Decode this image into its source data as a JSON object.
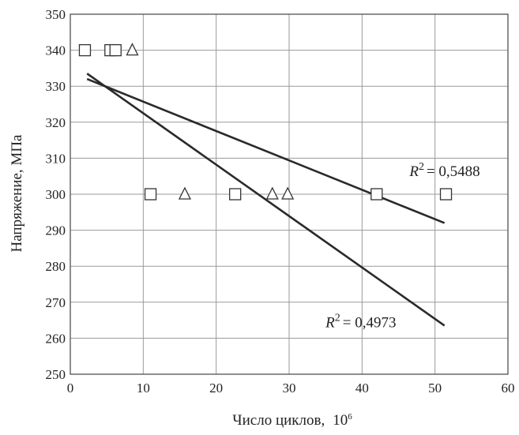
{
  "chart_data": {
    "type": "scatter",
    "title": "",
    "xlabel": "Число циклов,",
    "xlabel_unit": "10",
    "xlabel_unit_sup": "6",
    "ylabel": "Напряжение,  МПа",
    "xlim": [
      0,
      60
    ],
    "ylim": [
      250,
      350
    ],
    "x_ticks": [
      0,
      10,
      20,
      30,
      40,
      50,
      60
    ],
    "y_ticks": [
      250,
      260,
      270,
      280,
      290,
      300,
      310,
      320,
      330,
      340,
      350
    ],
    "grid": true,
    "legend": "none",
    "series": [
      {
        "marker": "square",
        "points": [
          [
            2,
            340
          ],
          [
            5.5,
            340
          ],
          [
            6.2,
            340
          ],
          [
            11,
            300
          ],
          [
            22.6,
            300
          ],
          [
            42,
            300
          ],
          [
            51.5,
            300
          ]
        ]
      },
      {
        "marker": "triangle",
        "points": [
          [
            8.5,
            340
          ],
          [
            15.7,
            300
          ],
          [
            27.7,
            300
          ],
          [
            29.8,
            300
          ]
        ]
      }
    ],
    "trendlines": [
      {
        "from": [
          2.3,
          333.5
        ],
        "to": [
          51.3,
          263.5
        ],
        "label_r": "R",
        "label_exp": "2",
        "label_value": "= 0,4973",
        "label_at": [
          35,
          263
        ]
      },
      {
        "from": [
          2.3,
          332
        ],
        "to": [
          51.3,
          292
        ],
        "label_r": "R",
        "label_exp": "2",
        "label_value": "= 0,5488",
        "label_at": [
          46.5,
          305
        ]
      }
    ]
  }
}
